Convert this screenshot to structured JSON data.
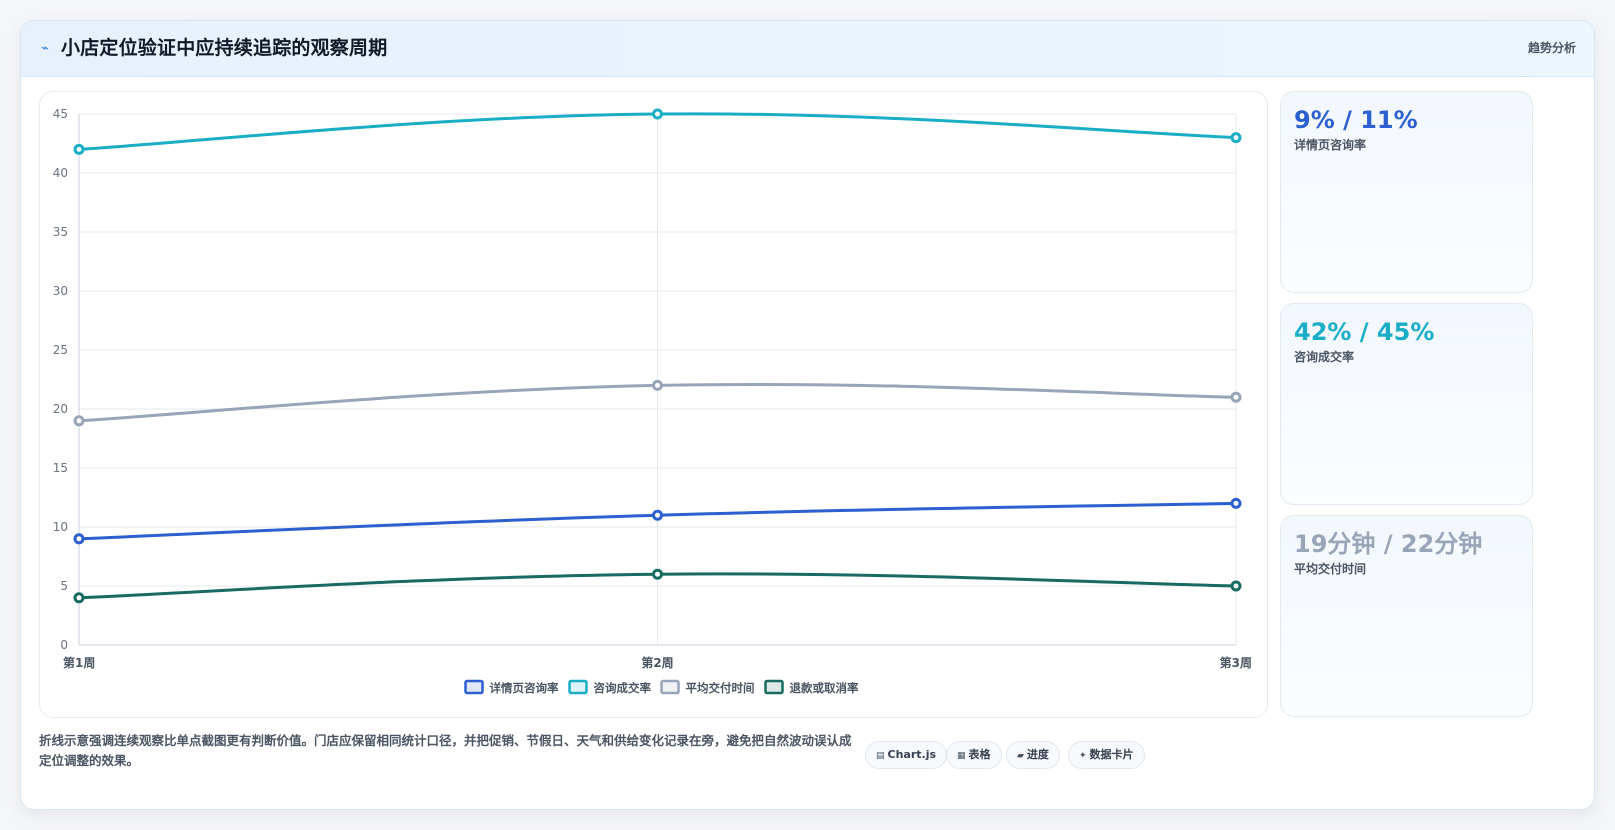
{
  "header": {
    "icon": "line-chart-icon",
    "title": "小店定位验证中应持续追踪的观察周期",
    "tag": "趋势分析"
  },
  "chart_data": {
    "type": "line",
    "categories": [
      "第1周",
      "第2周",
      "第3周"
    ],
    "ylim": [
      0,
      45
    ],
    "yticks": [
      0,
      5,
      10,
      15,
      20,
      25,
      30,
      35,
      40,
      45
    ],
    "grid": true,
    "legend_position": "bottom",
    "series": [
      {
        "name": "详情页咨询率",
        "values": [
          9,
          11,
          12
        ],
        "color": "#2c5fd0"
      },
      {
        "name": "咨询成交率",
        "values": [
          42,
          45,
          43
        ],
        "color": "#19aec6"
      },
      {
        "name": "平均交付时间",
        "values": [
          19,
          22,
          21
        ],
        "color": "#98a4b8"
      },
      {
        "name": "退款或取消率",
        "values": [
          4,
          6,
          5
        ],
        "color": "#176b61"
      }
    ]
  },
  "kpis": [
    {
      "value": "9% / 11%",
      "label": "详情页咨询率",
      "color": "#2c5fd0"
    },
    {
      "value": "42% / 45%",
      "label": "咨询成交率",
      "color": "#19aec6"
    },
    {
      "value": "19分钟 / 22分钟",
      "label": "平均交付时间",
      "color": "#98a4b8"
    }
  ],
  "footnote": "折线示意强调连续观察比单点截图更有判断价值。门店应保留相同统计口径，并把促销、节假日、天气和供给变化记录在旁，避免把自然波动误认成定位调整的效果。",
  "pills": [
    {
      "icon": "chart-icon",
      "glyph": "▤",
      "label": "Chart.js"
    },
    {
      "icon": "table-icon",
      "glyph": "▦",
      "label": "表格"
    },
    {
      "icon": "progress-icon",
      "glyph": "▰",
      "label": "进度"
    },
    {
      "icon": "data-card-icon",
      "glyph": "✦",
      "label": "数据卡片"
    }
  ]
}
